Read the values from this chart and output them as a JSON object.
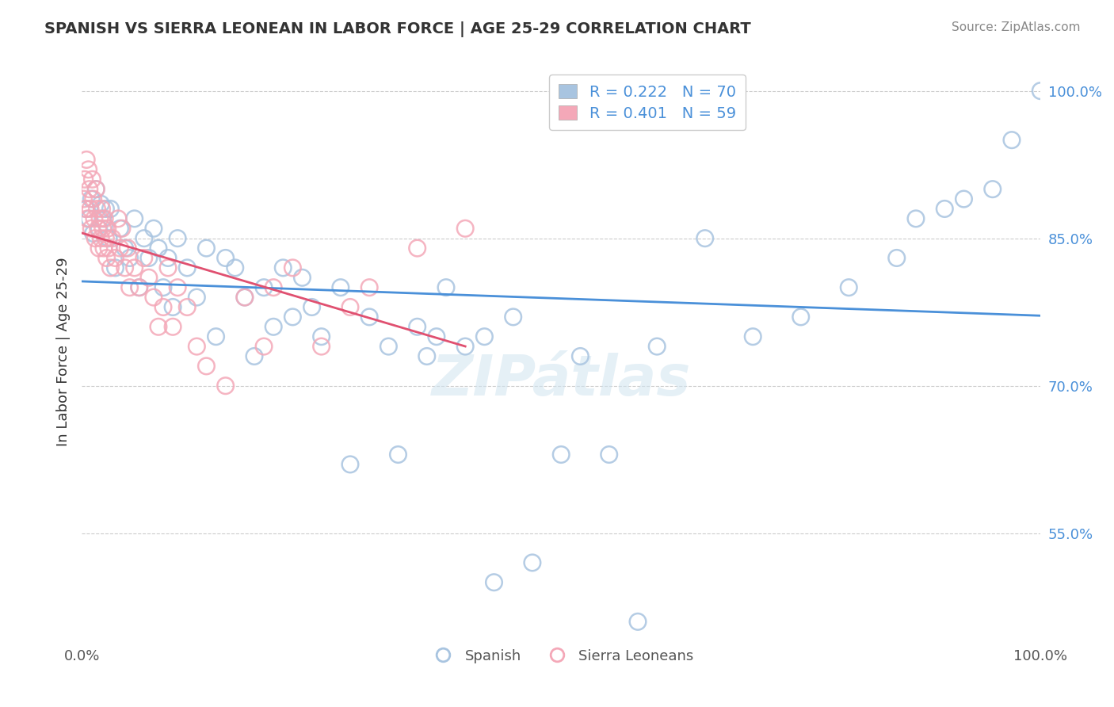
{
  "title": "SPANISH VS SIERRA LEONEAN IN LABOR FORCE | AGE 25-29 CORRELATION CHART",
  "source_text": "Source: ZipAtlas.com",
  "xlabel": "",
  "ylabel": "In Labor Force | Age 25-29",
  "legend_labels": [
    "Spanish",
    "Sierra Leoneans"
  ],
  "blue_R": 0.222,
  "blue_N": 70,
  "pink_R": 0.401,
  "pink_N": 59,
  "blue_color": "#a8c4e0",
  "pink_color": "#f4a8b8",
  "blue_line_color": "#4a90d9",
  "pink_line_color": "#e05070",
  "watermark": "ZIPátlas",
  "xlim": [
    0.0,
    1.0
  ],
  "ylim": [
    0.44,
    1.03
  ],
  "yticks": [
    0.55,
    0.7,
    0.85,
    1.0
  ],
  "ytick_labels": [
    "55.0%",
    "70.0%",
    "85.0%",
    "100.0%"
  ],
  "xtick_labels": [
    "0.0%",
    "100.0%"
  ],
  "spanish_x": [
    0.005,
    0.008,
    0.01,
    0.012,
    0.015,
    0.018,
    0.02,
    0.022,
    0.025,
    0.028,
    0.03,
    0.035,
    0.04,
    0.045,
    0.05,
    0.055,
    0.06,
    0.065,
    0.07,
    0.075,
    0.08,
    0.085,
    0.09,
    0.095,
    0.1,
    0.11,
    0.12,
    0.13,
    0.14,
    0.15,
    0.16,
    0.17,
    0.18,
    0.19,
    0.2,
    0.21,
    0.22,
    0.23,
    0.24,
    0.25,
    0.27,
    0.28,
    0.3,
    0.32,
    0.33,
    0.35,
    0.36,
    0.37,
    0.38,
    0.4,
    0.42,
    0.43,
    0.45,
    0.47,
    0.5,
    0.52,
    0.55,
    0.58,
    0.6,
    0.65,
    0.7,
    0.75,
    0.8,
    0.85,
    0.87,
    0.9,
    0.92,
    0.95,
    0.97,
    1.0
  ],
  "spanish_y": [
    0.88,
    0.87,
    0.89,
    0.855,
    0.9,
    0.86,
    0.885,
    0.87,
    0.88,
    0.85,
    0.88,
    0.82,
    0.86,
    0.84,
    0.83,
    0.87,
    0.8,
    0.85,
    0.83,
    0.86,
    0.84,
    0.8,
    0.83,
    0.78,
    0.85,
    0.82,
    0.79,
    0.84,
    0.75,
    0.83,
    0.82,
    0.79,
    0.73,
    0.8,
    0.76,
    0.82,
    0.77,
    0.81,
    0.78,
    0.75,
    0.8,
    0.62,
    0.77,
    0.74,
    0.63,
    0.76,
    0.73,
    0.75,
    0.8,
    0.74,
    0.75,
    0.5,
    0.77,
    0.52,
    0.63,
    0.73,
    0.63,
    0.46,
    0.74,
    0.85,
    0.75,
    0.77,
    0.8,
    0.83,
    0.87,
    0.88,
    0.89,
    0.9,
    0.95,
    1.0
  ],
  "sierra_x": [
    0.002,
    0.003,
    0.004,
    0.005,
    0.006,
    0.007,
    0.008,
    0.009,
    0.01,
    0.011,
    0.012,
    0.013,
    0.014,
    0.015,
    0.016,
    0.017,
    0.018,
    0.019,
    0.02,
    0.021,
    0.022,
    0.023,
    0.024,
    0.025,
    0.026,
    0.027,
    0.028,
    0.03,
    0.032,
    0.035,
    0.038,
    0.04,
    0.042,
    0.045,
    0.048,
    0.05,
    0.055,
    0.06,
    0.065,
    0.07,
    0.075,
    0.08,
    0.085,
    0.09,
    0.095,
    0.1,
    0.11,
    0.12,
    0.13,
    0.15,
    0.17,
    0.19,
    0.2,
    0.22,
    0.25,
    0.28,
    0.3,
    0.35,
    0.4
  ],
  "sierra_y": [
    0.89,
    0.91,
    0.88,
    0.93,
    0.87,
    0.92,
    0.9,
    0.88,
    0.86,
    0.91,
    0.89,
    0.87,
    0.85,
    0.9,
    0.88,
    0.86,
    0.84,
    0.87,
    0.85,
    0.88,
    0.86,
    0.84,
    0.87,
    0.85,
    0.83,
    0.86,
    0.84,
    0.82,
    0.85,
    0.83,
    0.87,
    0.84,
    0.86,
    0.82,
    0.84,
    0.8,
    0.82,
    0.8,
    0.83,
    0.81,
    0.79,
    0.76,
    0.78,
    0.82,
    0.76,
    0.8,
    0.78,
    0.74,
    0.72,
    0.7,
    0.79,
    0.74,
    0.8,
    0.82,
    0.74,
    0.78,
    0.8,
    0.84,
    0.86
  ]
}
